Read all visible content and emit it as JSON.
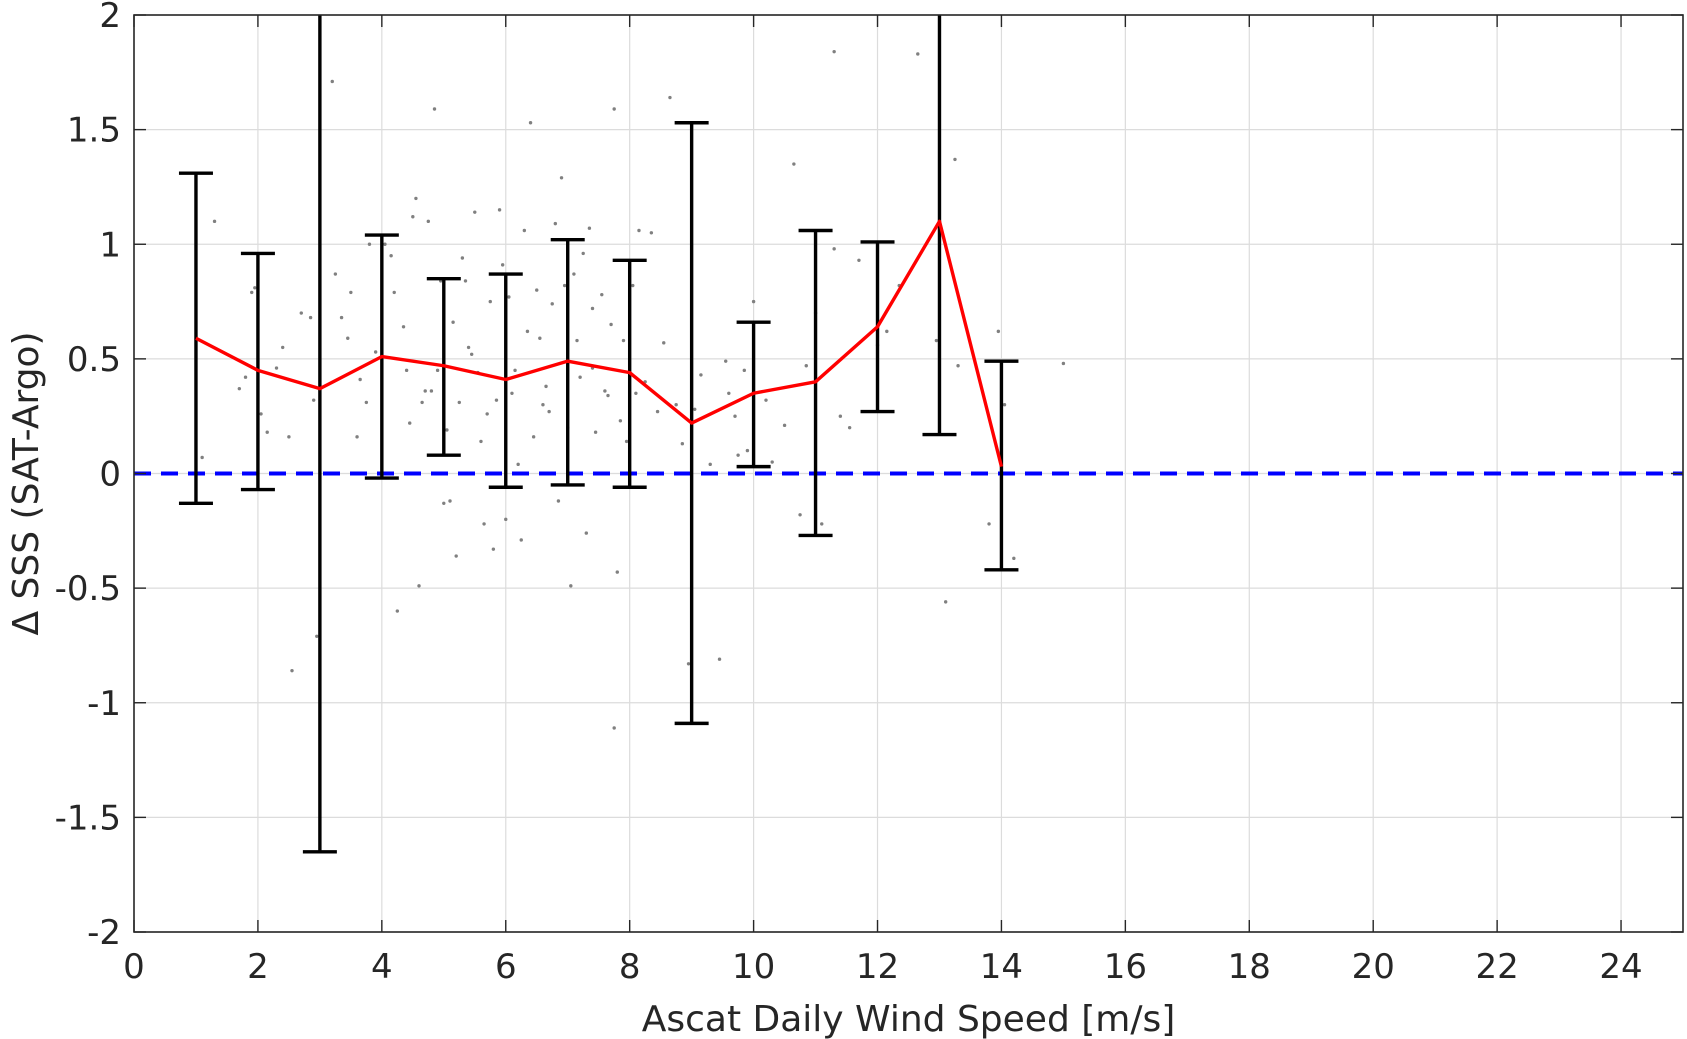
{
  "chart_data": {
    "type": "scatter",
    "xlabel": "Ascat Daily Wind Speed [m/s]",
    "ylabel": "Δ SSS (SAT-Argo)",
    "xlim": [
      0,
      25
    ],
    "ylim": [
      -2,
      2
    ],
    "xticks": [
      0,
      2,
      4,
      6,
      8,
      10,
      12,
      14,
      16,
      18,
      20,
      22,
      24
    ],
    "yticks": [
      -2,
      -1.5,
      -1,
      -0.5,
      0,
      0.5,
      1,
      1.5,
      2
    ],
    "ytick_labels": [
      "-2",
      "-1.5",
      "-1",
      "-0.5",
      "0",
      "0.5",
      "1",
      "1.5",
      "2"
    ],
    "grid": true,
    "reference_line": {
      "y": 0,
      "color": "#0000ff",
      "style": "dashed"
    },
    "mean_series": {
      "color": "#ff0000",
      "x": [
        1,
        2,
        3,
        4,
        5,
        6,
        7,
        8,
        9,
        10,
        11,
        12,
        13,
        14
      ],
      "y": [
        0.59,
        0.45,
        0.37,
        0.51,
        0.47,
        0.41,
        0.49,
        0.44,
        0.22,
        0.35,
        0.4,
        0.64,
        1.1,
        0.03
      ]
    },
    "error_bars": {
      "color": "#000000",
      "x": [
        1,
        2,
        3,
        4,
        5,
        6,
        7,
        8,
        9,
        10,
        11,
        12,
        13,
        14
      ],
      "lower": [
        -0.13,
        -0.07,
        -1.65,
        -0.02,
        0.08,
        -0.06,
        -0.05,
        -0.06,
        -1.09,
        0.03,
        -0.27,
        0.27,
        0.17,
        -0.42
      ],
      "upper": [
        1.31,
        0.96,
        2.0,
        1.04,
        0.85,
        0.87,
        1.02,
        0.93,
        1.53,
        0.66,
        1.06,
        1.01,
        2.0,
        0.49
      ]
    },
    "scatter_points": {
      "color": "#808080",
      "points": [
        [
          1.3,
          1.1
        ],
        [
          1.1,
          0.07
        ],
        [
          1.7,
          0.37
        ],
        [
          1.8,
          0.42
        ],
        [
          1.9,
          0.79
        ],
        [
          1.95,
          0.81
        ],
        [
          2.05,
          0.26
        ],
        [
          2.3,
          0.46
        ],
        [
          2.4,
          0.55
        ],
        [
          2.5,
          0.16
        ],
        [
          2.55,
          -0.86
        ],
        [
          2.7,
          0.7
        ],
        [
          2.85,
          0.68
        ],
        [
          2.9,
          0.32
        ],
        [
          2.95,
          -0.71
        ],
        [
          3.2,
          1.71
        ],
        [
          3.25,
          0.87
        ],
        [
          3.35,
          0.68
        ],
        [
          3.5,
          0.79
        ],
        [
          3.6,
          0.16
        ],
        [
          3.65,
          0.41
        ],
        [
          3.75,
          0.31
        ],
        [
          3.9,
          0.53
        ],
        [
          3.8,
          1.0
        ],
        [
          4.05,
          1.0
        ],
        [
          4.15,
          0.95
        ],
        [
          4.2,
          0.79
        ],
        [
          4.25,
          -0.6
        ],
        [
          4.35,
          0.64
        ],
        [
          4.4,
          0.45
        ],
        [
          4.45,
          0.22
        ],
        [
          4.5,
          1.12
        ],
        [
          4.55,
          1.2
        ],
        [
          4.6,
          -0.49
        ],
        [
          4.65,
          0.31
        ],
        [
          4.75,
          1.1
        ],
        [
          4.8,
          0.36
        ],
        [
          4.85,
          1.59
        ],
        [
          4.9,
          0.45
        ],
        [
          4.95,
          0.84
        ],
        [
          5.0,
          -0.13
        ],
        [
          5.05,
          0.19
        ],
        [
          5.1,
          -0.12
        ],
        [
          5.15,
          0.66
        ],
        [
          5.2,
          -0.36
        ],
        [
          5.25,
          0.31
        ],
        [
          5.3,
          0.94
        ],
        [
          5.4,
          0.55
        ],
        [
          5.5,
          1.14
        ],
        [
          5.55,
          0.44
        ],
        [
          5.6,
          0.14
        ],
        [
          5.65,
          -0.22
        ],
        [
          5.7,
          0.26
        ],
        [
          5.75,
          0.75
        ],
        [
          5.8,
          -0.33
        ],
        [
          5.85,
          0.32
        ],
        [
          5.9,
          1.15
        ],
        [
          5.95,
          0.91
        ],
        [
          6.0,
          -0.2
        ],
        [
          6.05,
          0.77
        ],
        [
          6.1,
          0.35
        ],
        [
          6.15,
          0.45
        ],
        [
          6.2,
          0.04
        ],
        [
          6.25,
          -0.29
        ],
        [
          6.3,
          1.06
        ],
        [
          6.35,
          0.62
        ],
        [
          6.4,
          1.53
        ],
        [
          6.45,
          0.16
        ],
        [
          6.5,
          0.8
        ],
        [
          6.55,
          0.59
        ],
        [
          6.6,
          0.3
        ],
        [
          6.7,
          0.27
        ],
        [
          6.75,
          0.74
        ],
        [
          6.8,
          1.09
        ],
        [
          6.9,
          1.29
        ],
        [
          6.95,
          0.82
        ],
        [
          7.0,
          0.2
        ],
        [
          7.05,
          -0.49
        ],
        [
          7.1,
          0.87
        ],
        [
          7.15,
          0.58
        ],
        [
          7.2,
          0.42
        ],
        [
          7.25,
          0.96
        ],
        [
          7.3,
          -0.26
        ],
        [
          7.35,
          1.07
        ],
        [
          7.4,
          0.46
        ],
        [
          7.45,
          0.18
        ],
        [
          7.55,
          0.78
        ],
        [
          7.6,
          0.36
        ],
        [
          7.7,
          0.65
        ],
        [
          7.75,
          1.59
        ],
        [
          7.8,
          -0.43
        ],
        [
          7.85,
          0.23
        ],
        [
          7.9,
          0.58
        ],
        [
          7.75,
          -1.11
        ],
        [
          7.95,
          0.14
        ],
        [
          8.05,
          0.82
        ],
        [
          8.15,
          1.06
        ],
        [
          8.25,
          0.4
        ],
        [
          8.35,
          1.05
        ],
        [
          8.45,
          0.27
        ],
        [
          8.55,
          0.57
        ],
        [
          8.65,
          1.64
        ],
        [
          8.75,
          0.3
        ],
        [
          8.85,
          0.13
        ],
        [
          8.95,
          -0.83
        ],
        [
          9.05,
          0.28
        ],
        [
          9.15,
          0.43
        ],
        [
          9.3,
          0.04
        ],
        [
          9.45,
          -0.81
        ],
        [
          9.55,
          0.49
        ],
        [
          9.6,
          0.35
        ],
        [
          9.7,
          0.25
        ],
        [
          9.75,
          0.08
        ],
        [
          9.9,
          0.1
        ],
        [
          10.0,
          0.75
        ],
        [
          10.2,
          0.32
        ],
        [
          10.3,
          0.05
        ],
        [
          10.65,
          1.35
        ],
        [
          10.75,
          -0.18
        ],
        [
          10.85,
          0.47
        ],
        [
          11.0,
          0.7
        ],
        [
          11.1,
          -0.22
        ],
        [
          11.3,
          0.98
        ],
        [
          11.4,
          0.25
        ],
        [
          11.55,
          0.2
        ],
        [
          11.3,
          1.84
        ],
        [
          12.0,
          0.56
        ],
        [
          12.15,
          0.62
        ],
        [
          12.35,
          0.82
        ],
        [
          12.65,
          1.83
        ],
        [
          12.95,
          0.58
        ],
        [
          13.1,
          -0.56
        ],
        [
          13.25,
          1.37
        ],
        [
          13.3,
          0.47
        ],
        [
          13.8,
          -0.22
        ],
        [
          13.95,
          0.62
        ],
        [
          14.05,
          0.3
        ],
        [
          14.2,
          -0.37
        ],
        [
          15.0,
          0.48
        ],
        [
          5.45,
          0.52
        ],
        [
          6.65,
          0.38
        ],
        [
          7.65,
          0.34
        ],
        [
          4.7,
          0.36
        ],
        [
          3.45,
          0.59
        ],
        [
          2.15,
          0.18
        ],
        [
          8.1,
          0.35
        ],
        [
          9.85,
          0.45
        ],
        [
          5.35,
          0.84
        ],
        [
          6.85,
          -0.12
        ],
        [
          7.4,
          0.72
        ],
        [
          10.5,
          0.21
        ],
        [
          11.7,
          0.93
        ]
      ]
    }
  }
}
